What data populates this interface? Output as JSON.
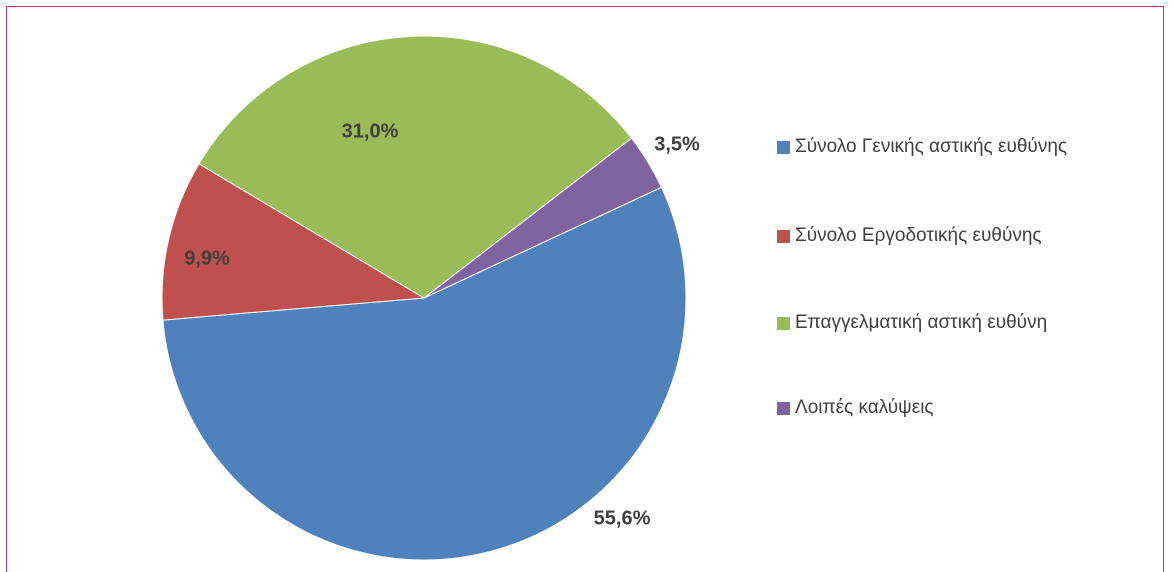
{
  "chart_data": {
    "type": "pie",
    "categories": [
      "Σύνολο Γενικής αστικής ευθύνης",
      "Σύνολο Εργοδοτικής ευθύνης",
      "Επαγγελματική αστική ευθύνη",
      "Λοιπές καλύψεις"
    ],
    "values": [
      55.6,
      9.9,
      31.0,
      3.5
    ],
    "value_labels": [
      "55,6%",
      "9,9%",
      "31,0%",
      "3,5%"
    ],
    "colors": [
      "#4f81bd",
      "#c0504d",
      "#9bbb59",
      "#8064a2"
    ],
    "legend": "right"
  }
}
